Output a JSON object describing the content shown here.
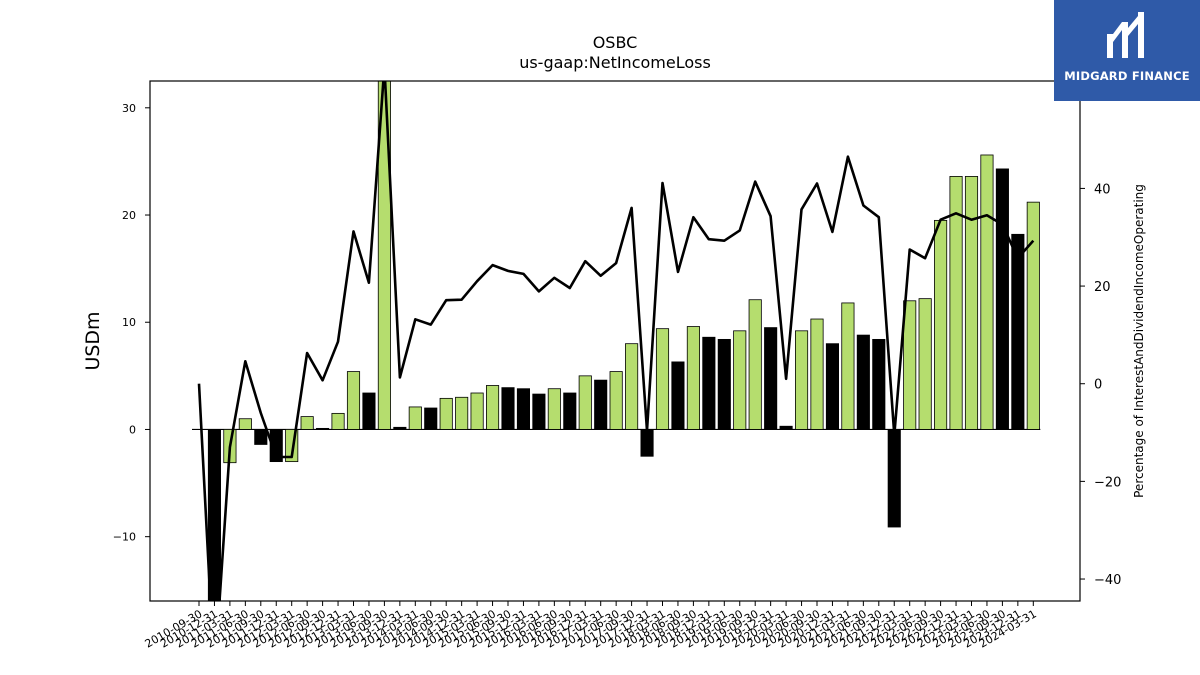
{
  "title": "OSBC",
  "subtitle": "us-gaap:NetIncomeLoss",
  "logo": {
    "text": "MIDGARD FINANCE",
    "bg": "#2f5aa8"
  },
  "colors": {
    "positive_bar": "#b5dd6e",
    "negative_bar": "#000000",
    "line": "#000000"
  },
  "chart_data": {
    "type": "bar",
    "ylabel_left": "USDm",
    "ylabel_right": "Percentage of InterestAndDividendIncomeOperating",
    "ylim_left": [
      -16,
      32.5
    ],
    "ylim_right": [
      -44.5,
      62
    ],
    "yticks_left": [
      -10,
      0,
      10,
      20,
      30
    ],
    "yticks_right": [
      -40,
      -20,
      0,
      20,
      40
    ],
    "categories": [
      "2010-09-30",
      "2010-12-31",
      "2011-03-31",
      "2011-06-30",
      "2011-09-30",
      "2011-12-31",
      "2012-03-31",
      "2012-06-30",
      "2012-09-30",
      "2012-12-31",
      "2013-03-31",
      "2013-06-30",
      "2013-09-30",
      "2013-12-31",
      "2014-03-31",
      "2014-06-30",
      "2014-09-30",
      "2014-12-31",
      "2015-03-31",
      "2015-06-30",
      "2015-09-30",
      "2015-12-31",
      "2016-03-31",
      "2016-06-30",
      "2016-09-30",
      "2016-12-31",
      "2017-03-31",
      "2017-06-30",
      "2017-09-30",
      "2017-12-31",
      "2018-03-31",
      "2018-06-30",
      "2018-09-30",
      "2018-12-31",
      "2019-03-31",
      "2019-06-30",
      "2019-09-30",
      "2019-12-31",
      "2020-03-31",
      "2020-06-30",
      "2020-09-30",
      "2020-12-31",
      "2021-03-31",
      "2021-06-30",
      "2021-09-30",
      "2021-12-31",
      "2022-03-31",
      "2022-06-30",
      "2022-09-30",
      "2022-12-31",
      "2023-03-31",
      "2023-06-30",
      "2023-09-30",
      "2023-12-31",
      "2024-03-31"
    ],
    "series": [
      {
        "kind": "bar",
        "values": [
          0.0,
          -16.0,
          -3.1,
          1.0,
          -1.4,
          -3.0,
          -3.0,
          1.2,
          0.1,
          1.5,
          5.4,
          3.4,
          32.5,
          0.2,
          2.1,
          2.0,
          2.9,
          3.0,
          3.4,
          4.1,
          3.9,
          3.8,
          3.3,
          3.8,
          3.4,
          5.0,
          4.6,
          5.4,
          8.0,
          -2.5,
          9.4,
          6.3,
          9.6,
          8.6,
          8.4,
          9.2,
          12.1,
          9.5,
          0.3,
          9.2,
          10.3,
          8.0,
          11.8,
          8.8,
          8.4,
          -9.1,
          12.0,
          12.2,
          19.5,
          23.6,
          23.6,
          25.6,
          24.3,
          18.2,
          21.2
        ]
      },
      {
        "kind": "line",
        "values": [
          0.0,
          -60.0,
          -13.0,
          4.6,
          -6.0,
          -15.0,
          -15.0,
          6.3,
          0.7,
          8.6,
          31.2,
          20.7,
          65.0,
          1.3,
          13.2,
          12.1,
          17.1,
          17.2,
          21.0,
          24.3,
          23.1,
          22.5,
          18.9,
          21.7,
          19.6,
          25.1,
          22.1,
          24.7,
          36.0,
          -9.6,
          41.1,
          22.9,
          34.1,
          29.6,
          29.3,
          31.4,
          41.4,
          34.3,
          1.0,
          35.7,
          41.0,
          31.1,
          46.5,
          36.5,
          34.1,
          -10.5,
          27.5,
          25.7,
          33.6,
          34.9,
          33.6,
          34.5,
          32.6,
          25.7,
          29.3
        ]
      }
    ]
  }
}
